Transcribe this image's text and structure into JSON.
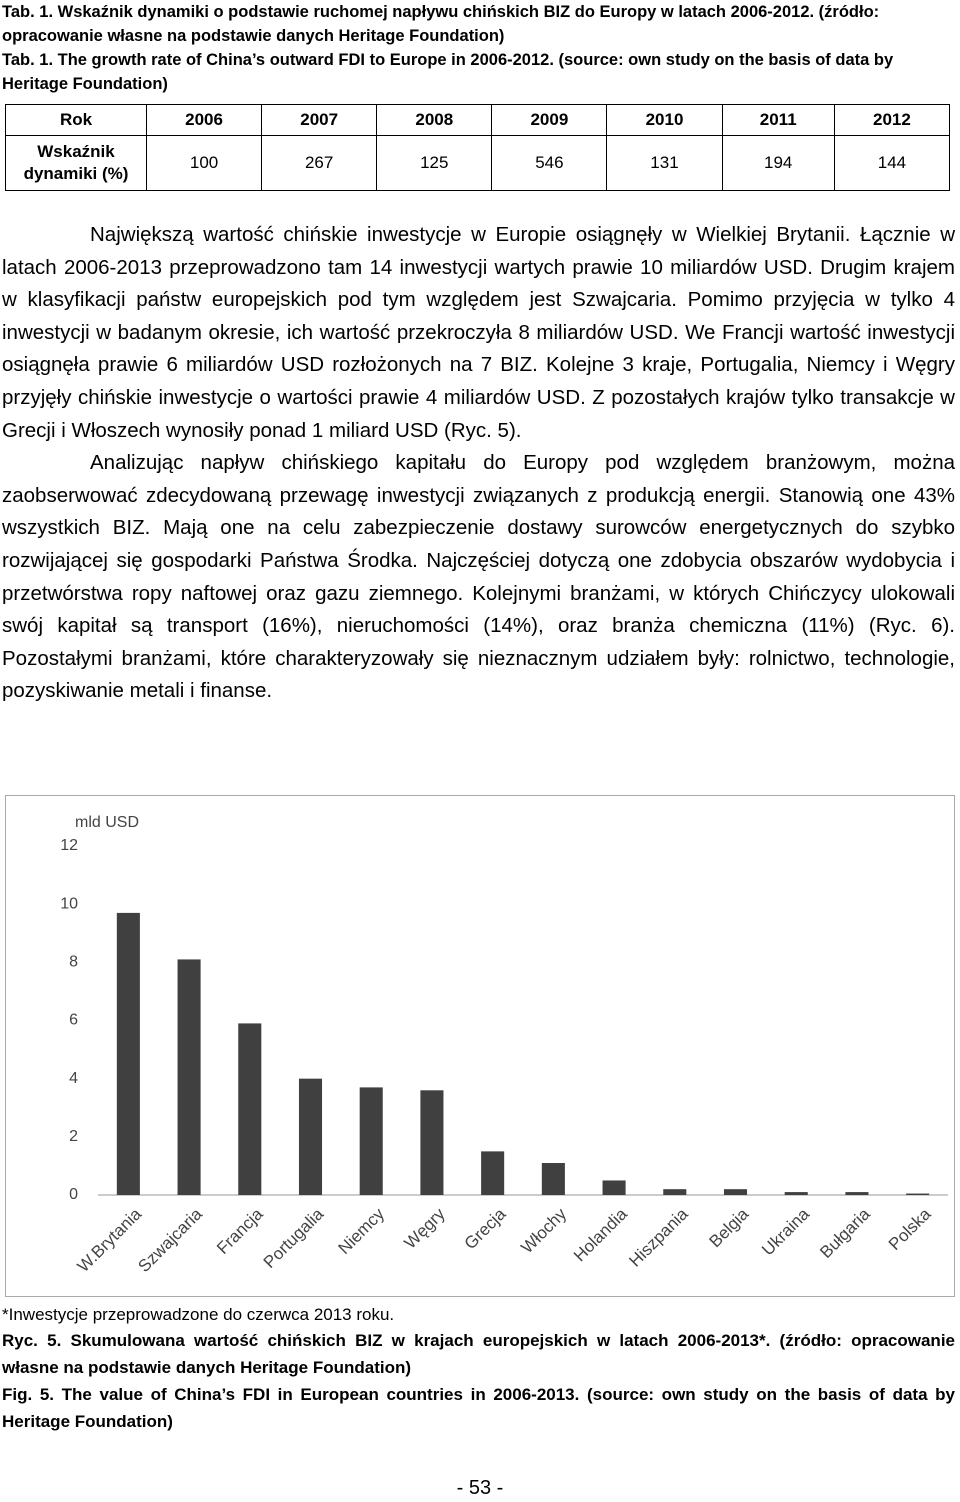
{
  "table_caption": {
    "pl": "Tab. 1. Wskaźnik dynamiki o podstawie ruchomej napływu chińskich BIZ do Europy w latach 2006-2012. (źródło: opracowanie własne na podstawie danych Heritage Foundation)",
    "en": "Tab. 1. The growth rate of China’s outward FDI to Europe in 2006-2012. (source: own study on the basis of data by Heritage Foundation)"
  },
  "table": {
    "header": [
      "Rok",
      "2006",
      "2007",
      "2008",
      "2009",
      "2010",
      "2011",
      "2012"
    ],
    "rows": [
      [
        "Wskaźnik dynamiki (%)",
        100,
        267,
        125,
        546,
        131,
        194,
        144
      ]
    ]
  },
  "paragraphs": [
    "Największą wartość chińskie inwestycje w Europie osiągnęły w Wielkiej Brytanii. Łącznie w latach 2006-2013 przeprowadzono tam 14 inwestycji wartych prawie 10 miliardów USD. Drugim krajem w klasyfikacji państw europejskich pod tym względem jest Szwajcaria. Pomimo przyjęcia w tylko 4 inwestycji w badanym okresie, ich wartość przekroczyła 8 miliardów USD. We Francji wartość inwestycji osiągnęła prawie 6 miliardów USD rozłożonych na 7 BIZ. Kolejne 3 kraje, Portugalia, Niemcy i Węgry przyjęły chińskie inwestycje o wartości prawie 4 miliardów USD. Z pozostałych krajów tylko transakcje w Grecji i Włoszech wynosiły ponad 1 miliard USD (Ryc. 5).",
    "Analizując napływ chińskiego kapitału do Europy pod względem branżowym, można zaobserwować zdecydowaną przewagę inwestycji związanych z produkcją energii. Stanowią one 43% wszystkich BIZ. Mają one na celu zabezpieczenie dostawy surowców energetycznych do szybko rozwijającej się gospodarki Państwa Środka. Najczęściej dotyczą one zdobycia obszarów wydobycia i przetwórstwa ropy naftowej oraz gazu ziemnego. Kolejnymi branżami, w których Chińczycy ulokowali swój kapitał są transport (16%), nieruchomości (14%), oraz branża chemiczna (11%) (Ryc. 6). Pozostałymi branżami, które charakteryzowały się nieznacznym udziałem były: rolnictwo, technologie, pozyskiwanie metali i finanse."
  ],
  "chart_data": {
    "type": "bar",
    "y_label": "mld USD",
    "categories": [
      "W.Brytania",
      "Szwajcaria",
      "Francja",
      "Portugalia",
      "Niemcy",
      "Węgry",
      "Grecja",
      "Włochy",
      "Holandia",
      "Hiszpania",
      "Belgia",
      "Ukraina",
      "Bułgaria",
      "Polska"
    ],
    "values": [
      9.7,
      8.1,
      5.9,
      4.0,
      3.7,
      3.6,
      1.5,
      1.1,
      0.5,
      0.2,
      0.2,
      0.1,
      0.1,
      0.05
    ],
    "color": "#404040",
    "ylim": [
      0,
      12
    ],
    "yticks": [
      0,
      2,
      4,
      6,
      8,
      10,
      12
    ],
    "grid": false
  },
  "footnote": "*Inwestycje przeprowadzone do czerwca 2013 roku.",
  "figure_caption": {
    "pl": "Ryc. 5. Skumulowana wartość chińskich BIZ w krajach europejskich w latach 2006-2013*. (źródło: opracowanie własne na podstawie danych Heritage Foundation)",
    "en": "Fig. 5. The value of China’s FDI in European countries in 2006-2013. (source: own study on the basis of data by Heritage Foundation)"
  },
  "page_number": "- 53 -"
}
